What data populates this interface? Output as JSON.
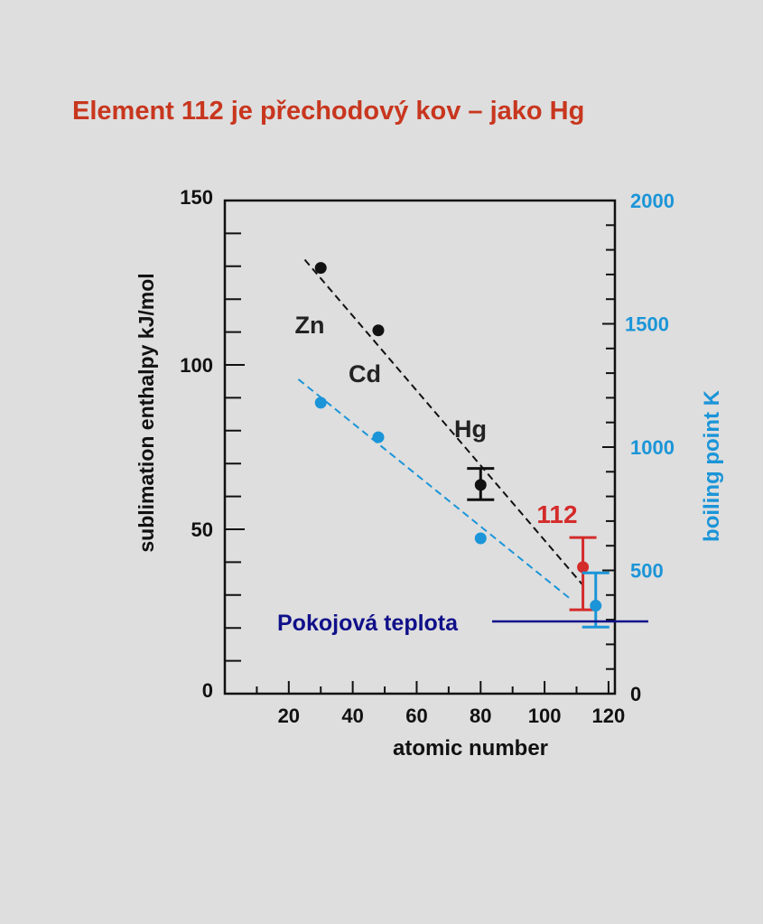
{
  "chart_data": {
    "type": "scatter",
    "title": "Element 112 je přechodový kov – jako Hg",
    "xlabel": "atomic number",
    "ylabel_left": "sublimation enthalpy  kJ/mol",
    "ylabel_right": "boiling point  K",
    "xlim": [
      0,
      122
    ],
    "ylim_left": [
      0,
      150
    ],
    "ylim_right": [
      0,
      2000
    ],
    "x_ticks": [
      20,
      40,
      60,
      80,
      100,
      120
    ],
    "y_ticks_left": [
      0,
      50,
      100,
      150
    ],
    "y_ticks_right": [
      0,
      500,
      1000,
      1500,
      2000
    ],
    "grid": false,
    "element_labels": [
      {
        "text": "Zn",
        "color": "#222222"
      },
      {
        "text": "Cd",
        "color": "#222222"
      },
      {
        "text": "Hg",
        "color": "#222222"
      },
      {
        "text": "112",
        "color": "#d42b2b"
      }
    ],
    "series": [
      {
        "axis": "left",
        "color": "#111111",
        "points": [
          {
            "x": 30,
            "y": 129.5
          },
          {
            "x": 48,
            "y": 110.5
          },
          {
            "x": 80,
            "y": 63.5,
            "err_low": 59,
            "err_high": 68.5
          }
        ],
        "fit_line": [
          {
            "x": 25,
            "y": 132
          },
          {
            "x": 112,
            "y": 33
          }
        ]
      },
      {
        "axis": "left",
        "color": "#d42b2b",
        "points": [
          {
            "x": 112,
            "y": 38.5,
            "err_low": 25.5,
            "err_high": 47.5
          }
        ]
      },
      {
        "axis": "right",
        "color": "#1b95d8",
        "points": [
          {
            "x": 30,
            "y": 1180
          },
          {
            "x": 48,
            "y": 1040
          },
          {
            "x": 80,
            "y": 630
          },
          {
            "x": 116,
            "y": 357,
            "err_low": 270,
            "err_high": 490
          }
        ],
        "fit_line": [
          {
            "x": 23,
            "y": 1275
          },
          {
            "x": 108,
            "y": 385
          }
        ]
      }
    ],
    "annotation": {
      "text": "Pokojová teplota",
      "axis": "right",
      "y": 293,
      "color": "#10108a"
    }
  }
}
